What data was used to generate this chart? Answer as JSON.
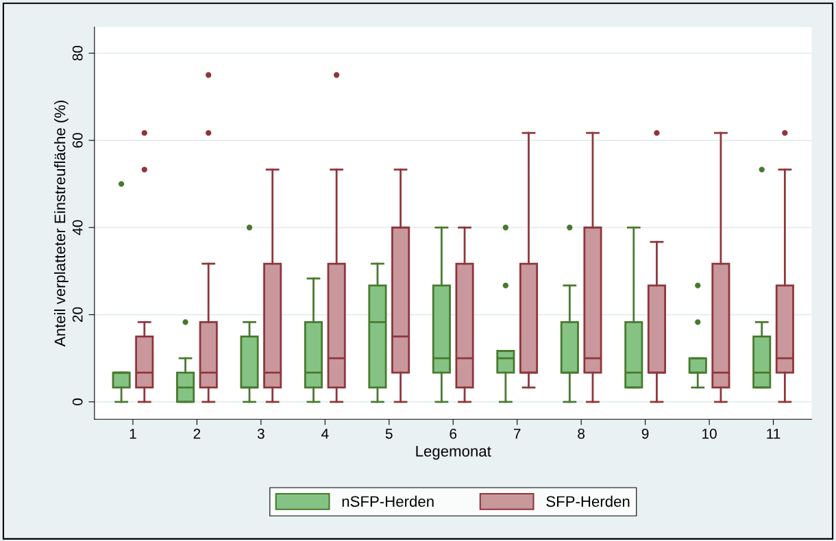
{
  "chart_data": {
    "type": "box",
    "xlabel": "Legemonat",
    "ylabel": "Anteil verplatteter Einstreufläche (%)",
    "categories": [
      "1",
      "2",
      "3",
      "4",
      "5",
      "6",
      "7",
      "8",
      "9",
      "10",
      "11"
    ],
    "ylim": [
      -4,
      86
    ],
    "yticks": [
      0,
      20,
      40,
      60,
      80
    ],
    "grid": "y",
    "legend": "bottom",
    "series": [
      {
        "name": "nSFP-Herden",
        "color": "#84c384",
        "boxes": [
          {
            "low": 0,
            "q1": 3.3,
            "median": 6.7,
            "q3": 6.7,
            "high": 6.7,
            "outliers": [
              50
            ]
          },
          {
            "low": 0,
            "q1": 0,
            "median": 3.3,
            "q3": 6.7,
            "high": 10,
            "outliers": [
              18.3
            ]
          },
          {
            "low": 0,
            "q1": 3.3,
            "median": 3.3,
            "q3": 15,
            "high": 18.3,
            "outliers": [
              40
            ]
          },
          {
            "low": 0,
            "q1": 3.3,
            "median": 6.7,
            "q3": 18.3,
            "high": 28.3
          },
          {
            "low": 0,
            "q1": 3.3,
            "median": 18.3,
            "q3": 26.7,
            "high": 31.7
          },
          {
            "low": 0,
            "q1": 6.7,
            "median": 10,
            "q3": 26.7,
            "high": 40
          },
          {
            "low": 0,
            "q1": 6.7,
            "median": 10,
            "q3": 11.7,
            "high": 11.7,
            "outliers": [
              26.7,
              40
            ]
          },
          {
            "low": 0,
            "q1": 6.7,
            "median": 6.7,
            "q3": 18.3,
            "high": 26.7,
            "outliers": [
              40
            ]
          },
          {
            "low": 3.3,
            "q1": 3.3,
            "median": 6.7,
            "q3": 18.3,
            "high": 40
          },
          {
            "low": 3.3,
            "q1": 6.7,
            "median": 6.7,
            "q3": 10,
            "high": 10,
            "outliers": [
              18.3,
              26.7
            ]
          },
          {
            "low": 3.3,
            "q1": 3.3,
            "median": 6.7,
            "q3": 15,
            "high": 18.3,
            "outliers": [
              53.3
            ]
          }
        ]
      },
      {
        "name": "SFP-Herden",
        "color": "#c8989c",
        "boxes": [
          {
            "low": 0,
            "q1": 3.3,
            "median": 6.7,
            "q3": 15,
            "high": 18.3,
            "outliers": [
              53.3,
              61.7
            ]
          },
          {
            "low": 0,
            "q1": 3.3,
            "median": 6.7,
            "q3": 18.3,
            "high": 31.7,
            "outliers": [
              61.7,
              75
            ]
          },
          {
            "low": 0,
            "q1": 3.3,
            "median": 6.7,
            "q3": 31.7,
            "high": 53.3
          },
          {
            "low": 0,
            "q1": 3.3,
            "median": 10,
            "q3": 31.7,
            "high": 53.3,
            "outliers": [
              75
            ]
          },
          {
            "low": 0,
            "q1": 6.7,
            "median": 15,
            "q3": 40,
            "high": 53.3
          },
          {
            "low": 0,
            "q1": 3.3,
            "median": 10,
            "q3": 31.7,
            "high": 40
          },
          {
            "low": 3.3,
            "q1": 6.7,
            "median": 6.7,
            "q3": 31.7,
            "high": 61.7
          },
          {
            "low": 0,
            "q1": 6.7,
            "median": 10,
            "q3": 40,
            "high": 61.7
          },
          {
            "low": 0,
            "q1": 6.7,
            "median": 6.7,
            "q3": 26.7,
            "high": 36.7,
            "outliers": [
              61.7
            ]
          },
          {
            "low": 0,
            "q1": 3.3,
            "median": 6.7,
            "q3": 31.7,
            "high": 61.7
          },
          {
            "low": 0,
            "q1": 6.7,
            "median": 10,
            "q3": 26.7,
            "high": 53.3,
            "outliers": [
              61.7
            ]
          }
        ]
      }
    ]
  }
}
